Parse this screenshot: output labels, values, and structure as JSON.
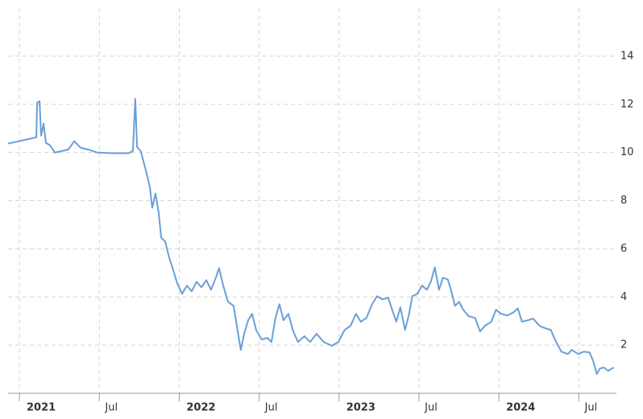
{
  "chart_data": {
    "type": "line",
    "x": [
      2020.929,
      2021.106,
      2021.111,
      2021.126,
      2021.136,
      2021.151,
      2021.166,
      2021.191,
      2021.222,
      2021.272,
      2021.307,
      2021.343,
      2021.383,
      2021.443,
      2021.484,
      2021.584,
      2021.685,
      2021.71,
      2021.725,
      2021.736,
      2021.761,
      2021.776,
      2021.796,
      2021.816,
      2021.831,
      2021.851,
      2021.872,
      2021.887,
      2021.912,
      2021.937,
      2021.962,
      2021.987,
      2022.018,
      2022.048,
      2022.078,
      2022.108,
      2022.139,
      2022.169,
      2022.199,
      2022.229,
      2022.249,
      2022.275,
      2022.305,
      2022.34,
      2022.36,
      2022.385,
      2022.406,
      2022.431,
      2022.456,
      2022.481,
      2022.516,
      2022.552,
      2022.577,
      2022.602,
      2022.627,
      2022.652,
      2022.683,
      2022.713,
      2022.743,
      2022.783,
      2022.819,
      2022.859,
      2022.904,
      2022.955,
      2022.995,
      2023.035,
      2023.071,
      2023.106,
      2023.136,
      2023.171,
      2023.207,
      2023.237,
      2023.272,
      2023.307,
      2023.332,
      2023.358,
      2023.383,
      2023.413,
      2023.438,
      2023.458,
      2023.489,
      2023.519,
      2023.549,
      2023.574,
      2023.599,
      2023.625,
      2023.65,
      2023.68,
      2023.7,
      2023.725,
      2023.751,
      2023.776,
      2023.811,
      2023.851,
      2023.882,
      2023.912,
      2023.952,
      2023.982,
      2024.013,
      2024.053,
      2024.093,
      2024.118,
      2024.144,
      2024.179,
      2024.214,
      2024.254,
      2024.29,
      2024.325,
      2024.35,
      2024.39,
      2024.431,
      2024.456,
      2024.496,
      2024.531,
      2024.567,
      2024.592,
      2024.612,
      2024.632,
      2024.657,
      2024.683,
      2024.718
    ],
    "values": [
      10.37,
      10.63,
      12.07,
      12.13,
      10.7,
      11.2,
      10.4,
      10.3,
      10.0,
      10.07,
      10.13,
      10.47,
      10.2,
      10.1,
      10.0,
      9.97,
      9.97,
      10.07,
      12.23,
      10.23,
      10.03,
      9.63,
      9.13,
      8.57,
      7.7,
      8.3,
      7.47,
      6.47,
      6.3,
      5.63,
      5.13,
      4.57,
      4.13,
      4.47,
      4.23,
      4.63,
      4.4,
      4.7,
      4.3,
      4.8,
      5.2,
      4.47,
      3.8,
      3.63,
      2.8,
      1.8,
      2.47,
      3.03,
      3.3,
      2.63,
      2.23,
      2.3,
      2.13,
      3.13,
      3.7,
      3.03,
      3.3,
      2.57,
      2.13,
      2.37,
      2.13,
      2.47,
      2.13,
      1.97,
      2.13,
      2.63,
      2.8,
      3.3,
      2.97,
      3.13,
      3.7,
      4.03,
      3.9,
      3.97,
      3.47,
      2.97,
      3.57,
      2.63,
      3.3,
      4.03,
      4.13,
      4.47,
      4.3,
      4.63,
      5.23,
      4.3,
      4.8,
      4.73,
      4.3,
      3.63,
      3.8,
      3.47,
      3.2,
      3.13,
      2.57,
      2.8,
      2.97,
      3.47,
      3.3,
      3.23,
      3.37,
      3.53,
      2.97,
      3.03,
      3.1,
      2.8,
      2.7,
      2.63,
      2.23,
      1.73,
      1.63,
      1.8,
      1.63,
      1.73,
      1.7,
      1.3,
      0.8,
      1.03,
      1.07,
      0.93,
      1.07
    ],
    "color": "#6a9fd8",
    "xlim": [
      2020.929,
      2024.735
    ],
    "xticks": [
      {
        "value": 2021,
        "label": "2021"
      },
      {
        "value": 2021.5,
        "label": "Jul"
      },
      {
        "value": 2022,
        "label": "2022"
      },
      {
        "value": 2022.5,
        "label": "Jul"
      },
      {
        "value": 2023,
        "label": "2023"
      },
      {
        "value": 2023.5,
        "label": "Jul"
      },
      {
        "value": 2024,
        "label": "2024"
      },
      {
        "value": 2024.5,
        "label": "Jul"
      }
    ],
    "ylim": [
      0,
      16
    ],
    "yticks": [
      2,
      4,
      6,
      8,
      10,
      12,
      14
    ],
    "grid": true
  }
}
